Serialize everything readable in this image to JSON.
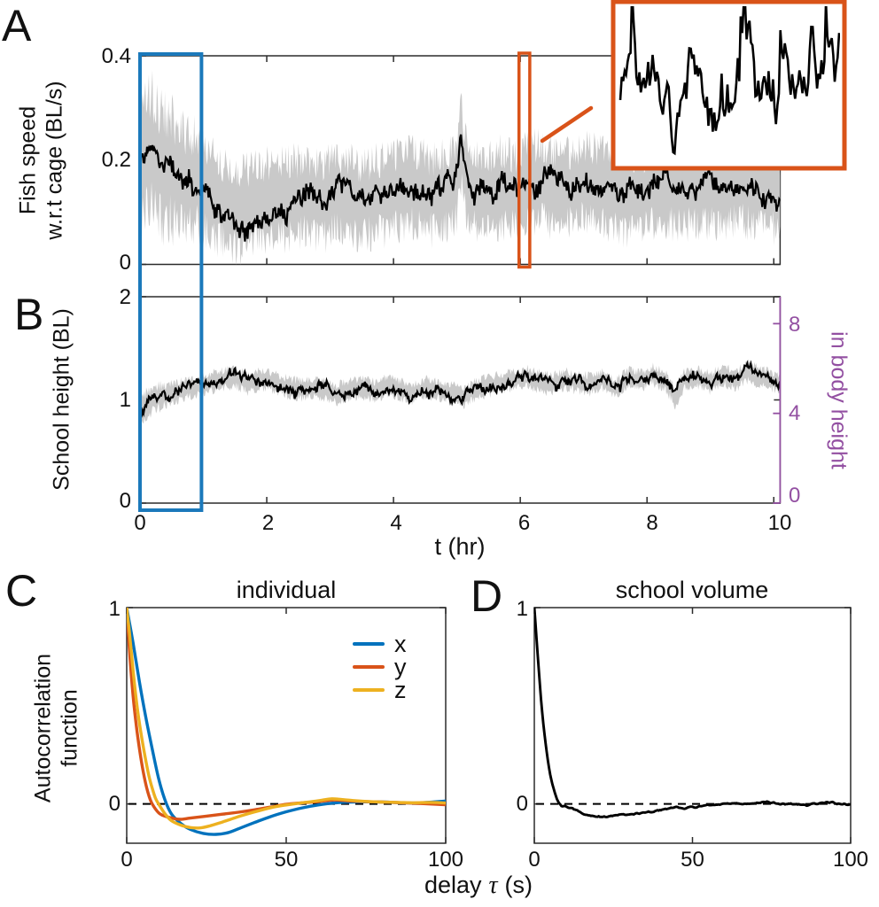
{
  "figure": {
    "panel_letters": [
      "A",
      "B",
      "C",
      "D"
    ],
    "colors": {
      "axis": "#2b2b2b",
      "highlight_blue": "#1b79bb",
      "highlight_orange": "#d95319",
      "band_gray": "#c9c9c9",
      "purple_axis": "#9350a2",
      "series_blue": "#0072bd",
      "series_orange": "#d95319",
      "series_yellow": "#edb120",
      "trace_black": "#000000"
    }
  },
  "chart_data": [
    {
      "id": "fish-speed-vs-time",
      "type": "line",
      "panel": "A",
      "title": "",
      "ylabel": [
        "Fish speed",
        "w.r.t cage (BL/s)"
      ],
      "xlim": [
        0,
        10.1
      ],
      "ylim": [
        0,
        0.4
      ],
      "yticks": [
        "0.4",
        "0.2",
        "0"
      ],
      "ytick_vals": [
        0.4,
        0.2,
        0
      ],
      "xtick_vals": [
        0,
        2,
        4,
        6,
        8,
        10
      ],
      "grid": false,
      "series": [
        {
          "name": "mean fish speed",
          "color": "#000000",
          "band_color": "#c9c9c9",
          "anchors_t": [
            0,
            0.08,
            0.15,
            0.25,
            0.35,
            0.5,
            0.65,
            0.8,
            0.95,
            1.1,
            1.3,
            1.5,
            1.7,
            1.9,
            2.1,
            2.3,
            2.5,
            2.7,
            2.9,
            3.1,
            3.3,
            3.5,
            3.7,
            3.9,
            4.1,
            4.3,
            4.5,
            4.7,
            4.9,
            5.0,
            5.05,
            5.15,
            5.3,
            5.5,
            5.7,
            5.9,
            6.1,
            6.3,
            6.5,
            6.7,
            6.9,
            7.1,
            7.3,
            7.5,
            7.7,
            7.9,
            8.1,
            8.3,
            8.5,
            8.7,
            8.9,
            9.1,
            9.3,
            9.5,
            9.7,
            9.9,
            10.1
          ],
          "anchors_v": [
            0.195,
            0.205,
            0.22,
            0.205,
            0.19,
            0.18,
            0.17,
            0.16,
            0.155,
            0.14,
            0.12,
            0.105,
            0.108,
            0.12,
            0.128,
            0.125,
            0.13,
            0.128,
            0.122,
            0.135,
            0.128,
            0.122,
            0.13,
            0.135,
            0.14,
            0.148,
            0.138,
            0.132,
            0.145,
            0.16,
            0.24,
            0.165,
            0.14,
            0.138,
            0.148,
            0.138,
            0.155,
            0.158,
            0.148,
            0.143,
            0.152,
            0.158,
            0.143,
            0.138,
            0.133,
            0.14,
            0.145,
            0.15,
            0.143,
            0.148,
            0.15,
            0.142,
            0.148,
            0.154,
            0.142,
            0.145,
            0.132
          ],
          "noise": 0.013,
          "band": 0.075,
          "band_scale_t": [
            0,
            0.3,
            1,
            2,
            10.1
          ],
          "band_scale": [
            1.6,
            1.5,
            1.15,
            1.0,
            1.0
          ],
          "seed": 11
        }
      ],
      "annotations": {
        "blue_box": {
          "t0": 0,
          "t1": 0.97,
          "color": "#1b79bb",
          "spans": "panels A and B"
        },
        "orange_box": {
          "t0": 5.98,
          "t1": 6.15,
          "color": "#d95319"
        },
        "inset": {
          "border_color": "#d95319",
          "content": "magnified fish-speed trace from orange box",
          "seed": 9,
          "n": 150
        }
      }
    },
    {
      "id": "school-height-vs-time",
      "type": "line",
      "panel": "B",
      "ylabel": "School height (BL)",
      "ylabel_right": "in body height",
      "xlabel": "t (hr)",
      "xlim": [
        0,
        10.1
      ],
      "ylim": [
        0,
        2
      ],
      "yticks": [
        "2",
        "1",
        "0"
      ],
      "ytick_vals": [
        2,
        1,
        0
      ],
      "yticks_right": [
        "8",
        "4",
        "0"
      ],
      "ytick_right_vals": [
        8,
        4,
        0
      ],
      "right_units_per_bl": 4.6,
      "xticks": [
        "0",
        "2",
        "4",
        "6",
        "8",
        "10"
      ],
      "xtick_vals": [
        0,
        2,
        4,
        6,
        8,
        10
      ],
      "grid": false,
      "series": [
        {
          "name": "mean school height",
          "color": "#000000",
          "band_color": "#c9c9c9",
          "anchors_t": [
            0,
            0.1,
            0.2,
            0.35,
            0.5,
            0.7,
            0.9,
            1.1,
            1.3,
            1.5,
            1.7,
            1.9,
            2.1,
            2.3,
            2.5,
            2.7,
            2.9,
            3.1,
            3.3,
            3.5,
            3.7,
            3.9,
            4.1,
            4.3,
            4.5,
            4.7,
            4.9,
            5.1,
            5.3,
            5.5,
            5.7,
            5.9,
            6.1,
            6.3,
            6.5,
            6.7,
            6.9,
            7.1,
            7.3,
            7.5,
            7.7,
            7.9,
            8.1,
            8.3,
            8.45,
            8.6,
            8.8,
            9.0,
            9.2,
            9.4,
            9.6,
            9.8,
            10.1
          ],
          "anchors_v": [
            0.86,
            0.95,
            1.0,
            1.04,
            1.07,
            1.1,
            1.13,
            1.17,
            1.2,
            1.22,
            1.16,
            1.2,
            1.18,
            1.13,
            1.1,
            1.12,
            1.1,
            1.06,
            1.1,
            1.12,
            1.09,
            1.14,
            1.1,
            1.06,
            1.12,
            1.1,
            1.07,
            1.03,
            1.1,
            1.14,
            1.17,
            1.2,
            1.22,
            1.18,
            1.15,
            1.2,
            1.17,
            1.15,
            1.2,
            1.1,
            1.21,
            1.19,
            1.24,
            1.18,
            1.02,
            1.2,
            1.22,
            1.17,
            1.24,
            1.2,
            1.27,
            1.22,
            1.16
          ],
          "noise": 0.028,
          "band": 0.09,
          "band_scale_t": [
            0,
            0.3,
            0.8,
            2,
            10.1
          ],
          "band_scale": [
            1.5,
            1.25,
            1.0,
            1.0,
            1.0
          ],
          "seed": 23
        }
      ]
    },
    {
      "id": "autocorrelation-individual",
      "type": "line",
      "panel": "C",
      "title": "individual",
      "ylabel": [
        "Autocorrelation",
        "function"
      ],
      "xlabel_parts": [
        "delay",
        "τ",
        "(s)"
      ],
      "xlim": [
        0,
        100
      ],
      "ylim": [
        -0.2,
        1
      ],
      "yticks": [
        "1",
        "0"
      ],
      "ytick_vals": [
        1,
        0
      ],
      "xticks": [
        "0",
        "50",
        "100"
      ],
      "xtick_vals": [
        0,
        50,
        100
      ],
      "zero_line_dashed": true,
      "legend_position": "top-right",
      "series": [
        {
          "name": "x",
          "color": "#0072bd",
          "anchors_t": [
            0,
            2,
            4,
            6,
            8,
            10,
            12,
            14,
            17,
            20,
            24,
            28,
            32,
            36,
            40,
            45,
            50,
            55,
            60,
            65,
            70,
            80,
            90,
            100
          ],
          "anchors_v": [
            1,
            0.82,
            0.62,
            0.44,
            0.28,
            0.13,
            0.02,
            -0.05,
            -0.1,
            -0.13,
            -0.15,
            -0.155,
            -0.145,
            -0.12,
            -0.095,
            -0.065,
            -0.04,
            -0.02,
            -0.005,
            0.005,
            0.01,
            0.01,
            0.005,
            0.015
          ]
        },
        {
          "name": "y",
          "color": "#d95319",
          "anchors_t": [
            0,
            1,
            2,
            3,
            4,
            5,
            6,
            7,
            8,
            10,
            12,
            15,
            17,
            20,
            25,
            30,
            35,
            40,
            45,
            50,
            55,
            60,
            65,
            70,
            75,
            80,
            90,
            100
          ],
          "anchors_v": [
            1,
            0.75,
            0.55,
            0.4,
            0.28,
            0.18,
            0.1,
            0.04,
            0,
            -0.045,
            -0.062,
            -0.075,
            -0.078,
            -0.072,
            -0.062,
            -0.052,
            -0.042,
            -0.03,
            -0.016,
            -0.002,
            0.006,
            0.012,
            0.02,
            0.015,
            0.012,
            0.01,
            0.004,
            -0.004
          ]
        },
        {
          "name": "z",
          "color": "#edb120",
          "anchors_t": [
            0,
            1,
            2,
            3,
            4,
            5,
            6,
            7,
            8,
            9,
            10,
            12,
            14,
            17,
            20,
            23,
            26,
            30,
            34,
            38,
            42,
            46,
            50,
            55,
            60,
            64,
            68,
            72,
            76,
            80,
            85,
            90,
            95,
            100
          ],
          "anchors_v": [
            1,
            0.85,
            0.68,
            0.53,
            0.41,
            0.31,
            0.22,
            0.14,
            0.08,
            0.03,
            0,
            -0.05,
            -0.085,
            -0.108,
            -0.12,
            -0.122,
            -0.112,
            -0.092,
            -0.07,
            -0.05,
            -0.032,
            -0.016,
            -0.005,
            0.006,
            0.016,
            0.026,
            0.022,
            0.016,
            0.012,
            0.01,
            0.008,
            0.006,
            0.008,
            0.005
          ]
        }
      ]
    },
    {
      "id": "autocorrelation-school-volume",
      "type": "line",
      "panel": "D",
      "title": "school volume",
      "xlim": [
        0,
        100
      ],
      "ylim": [
        -0.2,
        1
      ],
      "yticks": [
        "1",
        "0"
      ],
      "ytick_vals": [
        1,
        0
      ],
      "xticks": [
        "0",
        "50",
        "100"
      ],
      "xtick_vals": [
        0,
        50,
        100
      ],
      "zero_line_dashed": true,
      "series": [
        {
          "name": "school volume autocorrelation",
          "color": "#000000",
          "anchors_t": [
            0,
            1,
            2,
            3,
            4,
            5,
            6,
            7,
            8,
            9,
            10,
            11,
            12,
            14,
            16,
            18,
            20,
            22,
            25,
            28,
            31,
            34,
            37,
            40,
            43,
            45,
            47,
            50,
            53,
            56,
            60,
            63,
            66,
            70,
            73,
            75,
            78,
            82,
            86,
            90,
            93,
            96,
            100
          ],
          "anchors_v": [
            1,
            0.78,
            0.55,
            0.38,
            0.25,
            0.15,
            0.08,
            0.03,
            0,
            -0.012,
            -0.01,
            -0.022,
            -0.02,
            -0.04,
            -0.055,
            -0.06,
            -0.065,
            -0.065,
            -0.06,
            -0.055,
            -0.05,
            -0.046,
            -0.04,
            -0.03,
            -0.02,
            -0.016,
            -0.022,
            -0.016,
            -0.01,
            -0.005,
            0,
            0.006,
            0,
            0.005,
            0.012,
            0.006,
            0,
            0,
            -0.006,
            0.004,
            0.01,
            0,
            -0.005
          ],
          "noise": 0.006,
          "seed": 5
        }
      ]
    }
  ]
}
